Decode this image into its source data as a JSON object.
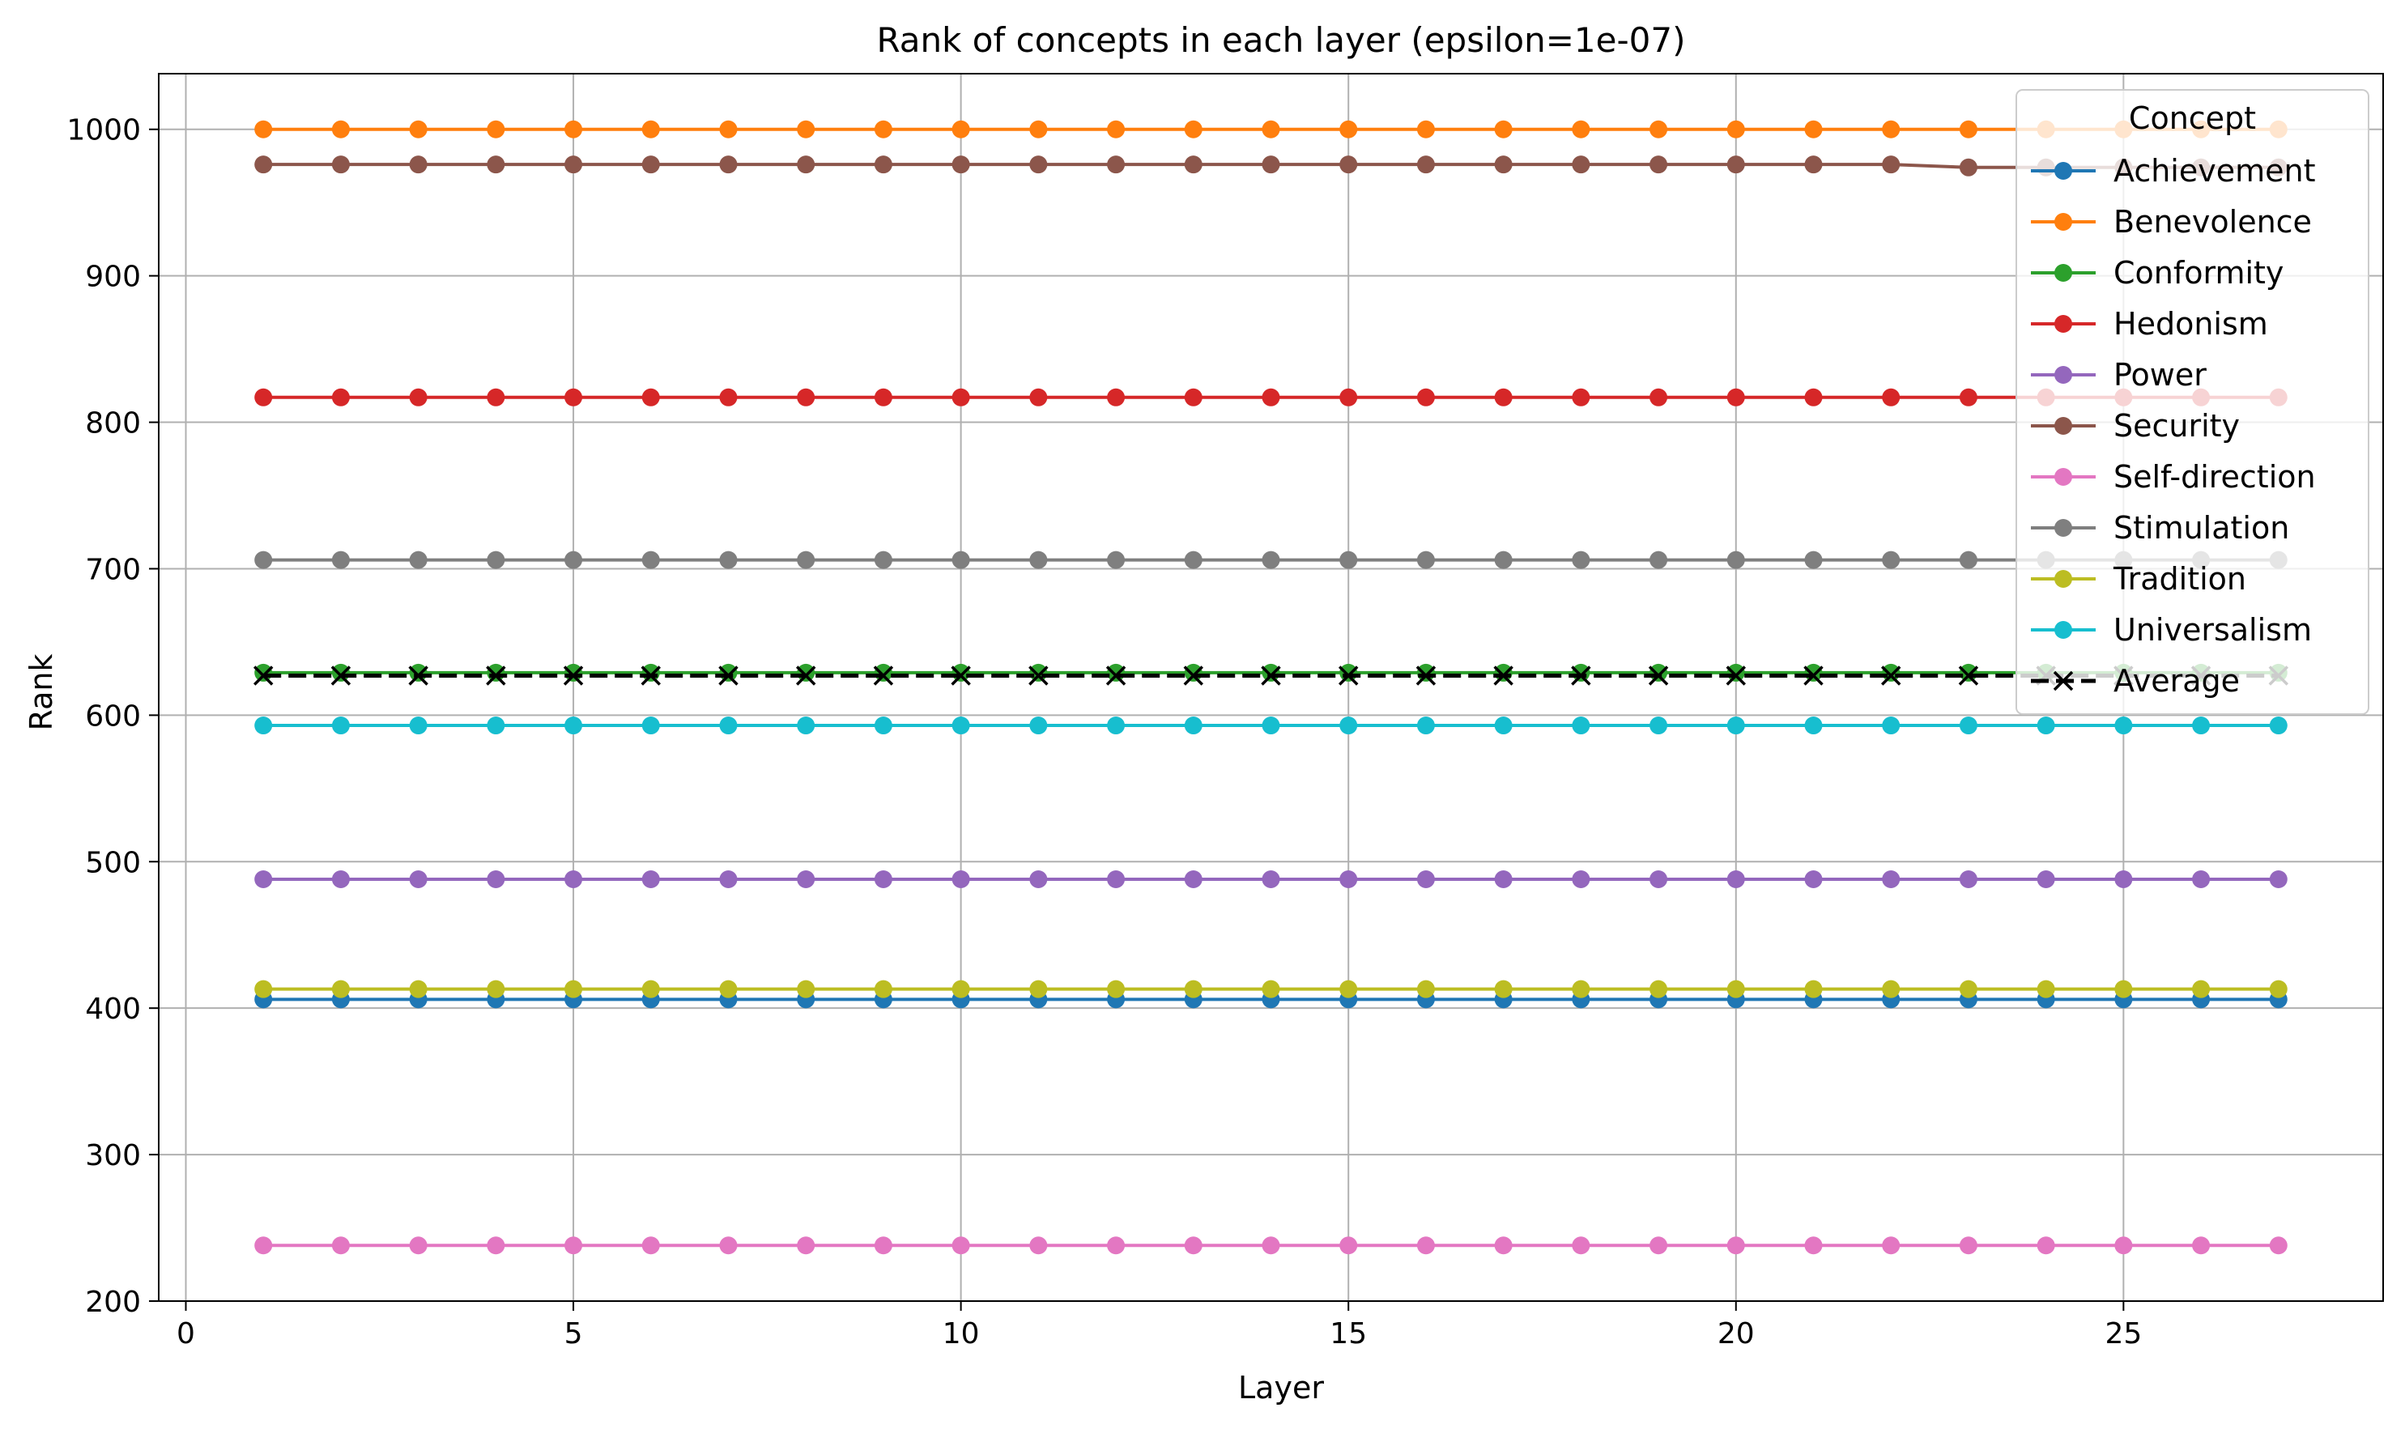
{
  "chart_data": {
    "type": "line",
    "title": "Rank of concepts in each layer (epsilon=1e-07)",
    "xlabel": "Layer",
    "ylabel": "Rank",
    "xlim": [
      -0.35,
      28.35
    ],
    "ylim": [
      200,
      1038
    ],
    "xticks": [
      0,
      5,
      10,
      15,
      20,
      25
    ],
    "yticks": [
      200,
      300,
      400,
      500,
      600,
      700,
      800,
      900,
      1000
    ],
    "grid": true,
    "legend_title": "Concept",
    "legend_position": "top-right",
    "x": [
      1,
      2,
      3,
      4,
      5,
      6,
      7,
      8,
      9,
      10,
      11,
      12,
      13,
      14,
      15,
      16,
      17,
      18,
      19,
      20,
      21,
      22,
      23,
      24,
      25,
      26,
      27
    ],
    "series": [
      {
        "name": "Achievement",
        "color": "#1f77b4",
        "marker": "circle",
        "dash": false,
        "values": [
          406,
          406,
          406,
          406,
          406,
          406,
          406,
          406,
          406,
          406,
          406,
          406,
          406,
          406,
          406,
          406,
          406,
          406,
          406,
          406,
          406,
          406,
          406,
          406,
          406,
          406,
          406
        ]
      },
      {
        "name": "Benevolence",
        "color": "#ff7f0e",
        "marker": "circle",
        "dash": false,
        "values": [
          1000,
          1000,
          1000,
          1000,
          1000,
          1000,
          1000,
          1000,
          1000,
          1000,
          1000,
          1000,
          1000,
          1000,
          1000,
          1000,
          1000,
          1000,
          1000,
          1000,
          1000,
          1000,
          1000,
          1000,
          1000,
          1000,
          1000
        ]
      },
      {
        "name": "Conformity",
        "color": "#2ca02c",
        "marker": "circle",
        "dash": false,
        "values": [
          629,
          629,
          629,
          629,
          629,
          629,
          629,
          629,
          629,
          629,
          629,
          629,
          629,
          629,
          629,
          629,
          629,
          629,
          629,
          629,
          629,
          629,
          629,
          629,
          629,
          629,
          629
        ]
      },
      {
        "name": "Hedonism",
        "color": "#d62728",
        "marker": "circle",
        "dash": false,
        "values": [
          817,
          817,
          817,
          817,
          817,
          817,
          817,
          817,
          817,
          817,
          817,
          817,
          817,
          817,
          817,
          817,
          817,
          817,
          817,
          817,
          817,
          817,
          817,
          817,
          817,
          817,
          817
        ]
      },
      {
        "name": "Power",
        "color": "#9467bd",
        "marker": "circle",
        "dash": false,
        "values": [
          488,
          488,
          488,
          488,
          488,
          488,
          488,
          488,
          488,
          488,
          488,
          488,
          488,
          488,
          488,
          488,
          488,
          488,
          488,
          488,
          488,
          488,
          488,
          488,
          488,
          488,
          488
        ]
      },
      {
        "name": "Security",
        "color": "#8c564b",
        "marker": "circle",
        "dash": false,
        "values": [
          976,
          976,
          976,
          976,
          976,
          976,
          976,
          976,
          976,
          976,
          976,
          976,
          976,
          976,
          976,
          976,
          976,
          976,
          976,
          976,
          976,
          976,
          974,
          974,
          974,
          974,
          974
        ]
      },
      {
        "name": "Self-direction",
        "color": "#e377c2",
        "marker": "circle",
        "dash": false,
        "values": [
          238,
          238,
          238,
          238,
          238,
          238,
          238,
          238,
          238,
          238,
          238,
          238,
          238,
          238,
          238,
          238,
          238,
          238,
          238,
          238,
          238,
          238,
          238,
          238,
          238,
          238,
          238
        ]
      },
      {
        "name": "Stimulation",
        "color": "#7f7f7f",
        "marker": "circle",
        "dash": false,
        "values": [
          706,
          706,
          706,
          706,
          706,
          706,
          706,
          706,
          706,
          706,
          706,
          706,
          706,
          706,
          706,
          706,
          706,
          706,
          706,
          706,
          706,
          706,
          706,
          706,
          706,
          706,
          706
        ]
      },
      {
        "name": "Tradition",
        "color": "#bcbd22",
        "marker": "circle",
        "dash": false,
        "values": [
          413,
          413,
          413,
          413,
          413,
          413,
          413,
          413,
          413,
          413,
          413,
          413,
          413,
          413,
          413,
          413,
          413,
          413,
          413,
          413,
          413,
          413,
          413,
          413,
          413,
          413,
          413
        ]
      },
      {
        "name": "Universalism",
        "color": "#17becf",
        "marker": "circle",
        "dash": false,
        "values": [
          593,
          593,
          593,
          593,
          593,
          593,
          593,
          593,
          593,
          593,
          593,
          593,
          593,
          593,
          593,
          593,
          593,
          593,
          593,
          593,
          593,
          593,
          593,
          593,
          593,
          593,
          593
        ]
      },
      {
        "name": "Average",
        "color": "#000000",
        "marker": "x",
        "dash": true,
        "values": [
          627,
          627,
          627,
          627,
          627,
          627,
          627,
          627,
          627,
          627,
          627,
          627,
          627,
          627,
          627,
          627,
          627,
          627,
          627,
          627,
          627,
          627,
          627,
          627,
          627,
          627,
          627
        ]
      }
    ]
  }
}
